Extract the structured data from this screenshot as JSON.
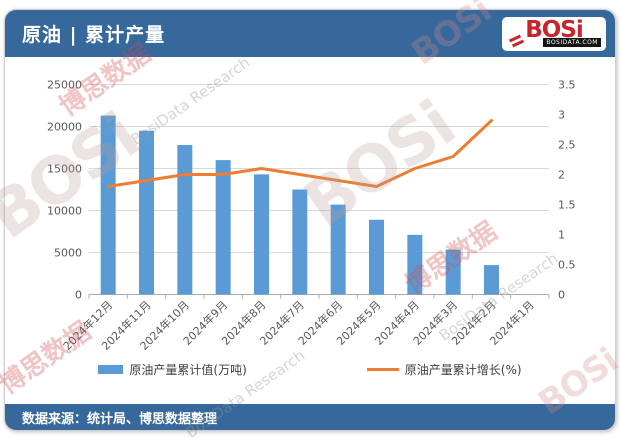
{
  "header": {
    "title": "原油 | 累计产量",
    "logo": {
      "text": "BOSi",
      "site": "BOSIDATA.COM"
    }
  },
  "footer": {
    "source": "数据来源：统计局、博思数据整理"
  },
  "watermark": {
    "brand": "BOSi",
    "brand_cn": "博思数据",
    "brand_en": "BosiData Research",
    "site": "BOSIDATA.COM"
  },
  "colors": {
    "accent_blue": "#36689B",
    "bar_blue": "#5B9BD5",
    "line_orange": "#ED7D31",
    "logo_red": "#C8252C",
    "grid": "#D9D9D9",
    "axis_text": "#595959"
  },
  "chart_data": {
    "type": "combo-bar-line",
    "title": "原油 | 累计产量",
    "categories": [
      "2024年12月",
      "2024年11月",
      "2024年10月",
      "2024年9月",
      "2024年8月",
      "2024年7月",
      "2024年6月",
      "2024年5月",
      "2024年4月",
      "2024年3月",
      "2024年2月",
      "2024年1月"
    ],
    "series": [
      {
        "name": "原油产量累计值(万吨)",
        "type": "bar",
        "axis": "left",
        "color": "#5B9BD5",
        "values": [
          21300,
          19500,
          17800,
          16000,
          14300,
          12500,
          10700,
          8900,
          7100,
          5350,
          3500,
          null
        ]
      },
      {
        "name": "原油产量累计增长(%)",
        "type": "line",
        "axis": "right",
        "color": "#ED7D31",
        "values": [
          1.8,
          1.9,
          2.0,
          2.0,
          2.1,
          2.0,
          1.9,
          1.8,
          2.1,
          2.3,
          2.9,
          null
        ]
      }
    ],
    "left_axis": {
      "min": 0,
      "max": 25000,
      "step": 5000,
      "ticks": [
        "0",
        "5000",
        "10000",
        "15000",
        "20000",
        "25000"
      ]
    },
    "right_axis": {
      "min": 0,
      "max": 3.5,
      "step": 0.5,
      "ticks": [
        "0",
        "0.5",
        "1",
        "1.5",
        "2",
        "2.5",
        "3",
        "3.5"
      ]
    },
    "grid": true,
    "legend_position": "bottom",
    "x_label_rotation": -45
  }
}
